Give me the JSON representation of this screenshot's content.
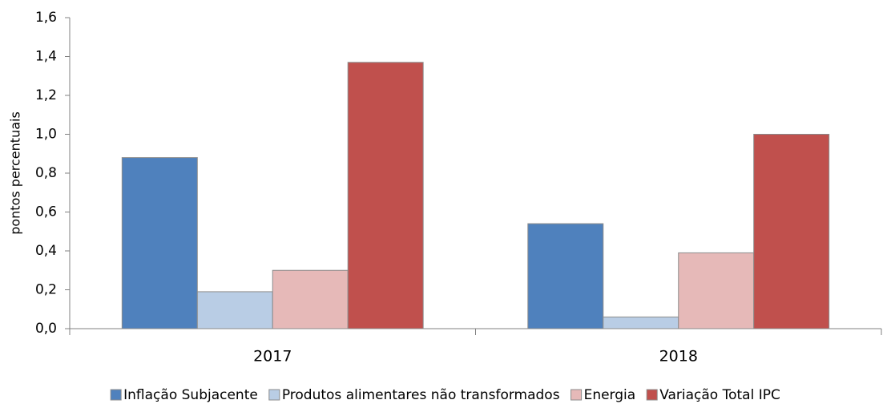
{
  "chart_data": {
    "type": "bar",
    "y_label": "pontos percentuais",
    "categories": [
      "2017",
      "2018"
    ],
    "series": [
      {
        "name": "Inflação Subjacente",
        "color": "#4f81bd",
        "values": [
          0.88,
          0.54
        ]
      },
      {
        "name": "Produtos alimentares não transformados",
        "color": "#b9cde5",
        "values": [
          0.19,
          0.06
        ]
      },
      {
        "name": "Energia",
        "color": "#e6b9b8",
        "values": [
          0.3,
          0.39
        ]
      },
      {
        "name": "Variação Total IPC",
        "color": "#c0504d",
        "values": [
          1.37,
          1.0
        ]
      }
    ],
    "ylim": [
      0,
      1.6
    ],
    "yticks": [
      {
        "value": 0,
        "label": "0,0"
      },
      {
        "value": 0.2,
        "label": "0,2"
      },
      {
        "value": 0.4,
        "label": "0,4"
      },
      {
        "value": 0.6,
        "label": "0,6"
      },
      {
        "value": 0.8,
        "label": "0,8"
      },
      {
        "value": 1.0,
        "label": "1,0"
      },
      {
        "value": 1.2,
        "label": "1,2"
      },
      {
        "value": 1.4,
        "label": "1,4"
      },
      {
        "value": 1.6,
        "label": "1,6"
      }
    ],
    "grid": false,
    "legend": "bottom"
  }
}
